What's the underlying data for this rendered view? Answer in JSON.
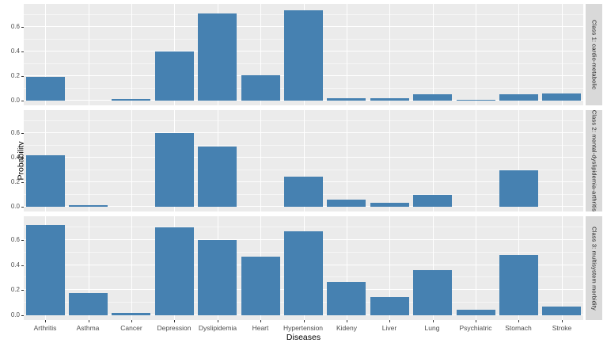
{
  "chart_data": {
    "type": "bar",
    "title": "",
    "xlabel": "Diseases",
    "ylabel": "Probability",
    "legend": "none",
    "grid": "on",
    "categories": [
      "Arthritis",
      "Asthma",
      "Cancer",
      "Depression",
      "Dyslipidemia",
      "Heart",
      "Hypertension",
      "Kideny",
      "Liver",
      "Lung",
      "Psychiatric",
      "Stomach",
      "Stroke"
    ],
    "facets": [
      {
        "label": "Class 1: cardio-metabolic",
        "values": [
          0.195,
          0.0,
          0.012,
          0.4,
          0.71,
          0.21,
          0.735,
          0.02,
          0.02,
          0.05,
          0.006,
          0.05,
          0.06
        ]
      },
      {
        "label": "Class 2: mental-dyslipidemia-arthritis",
        "values": [
          0.42,
          0.015,
          0.0,
          0.6,
          0.49,
          0.0,
          0.245,
          0.06,
          0.035,
          0.095,
          0.0,
          0.3,
          0.0
        ]
      },
      {
        "label": "Class 3: multisystem morbidity",
        "values": [
          0.72,
          0.175,
          0.02,
          0.7,
          0.6,
          0.465,
          0.665,
          0.265,
          0.145,
          0.36,
          0.045,
          0.48,
          0.07
        ]
      }
    ],
    "ylim": [
      0,
      0.75
    ],
    "yticks": [
      0.0,
      0.2,
      0.4,
      0.6
    ],
    "ytick_labels": [
      "0.0",
      "0.2",
      "0.4",
      "0.6"
    ],
    "yticks_minor": [
      0.1,
      0.3,
      0.5,
      0.7
    ],
    "bar_color": "#4681b1",
    "panel_bg": "#ebebeb",
    "strip_bg": "#d9d9d9",
    "grid_color": "#ffffff",
    "axis_text_color": "#4d4d4d"
  }
}
